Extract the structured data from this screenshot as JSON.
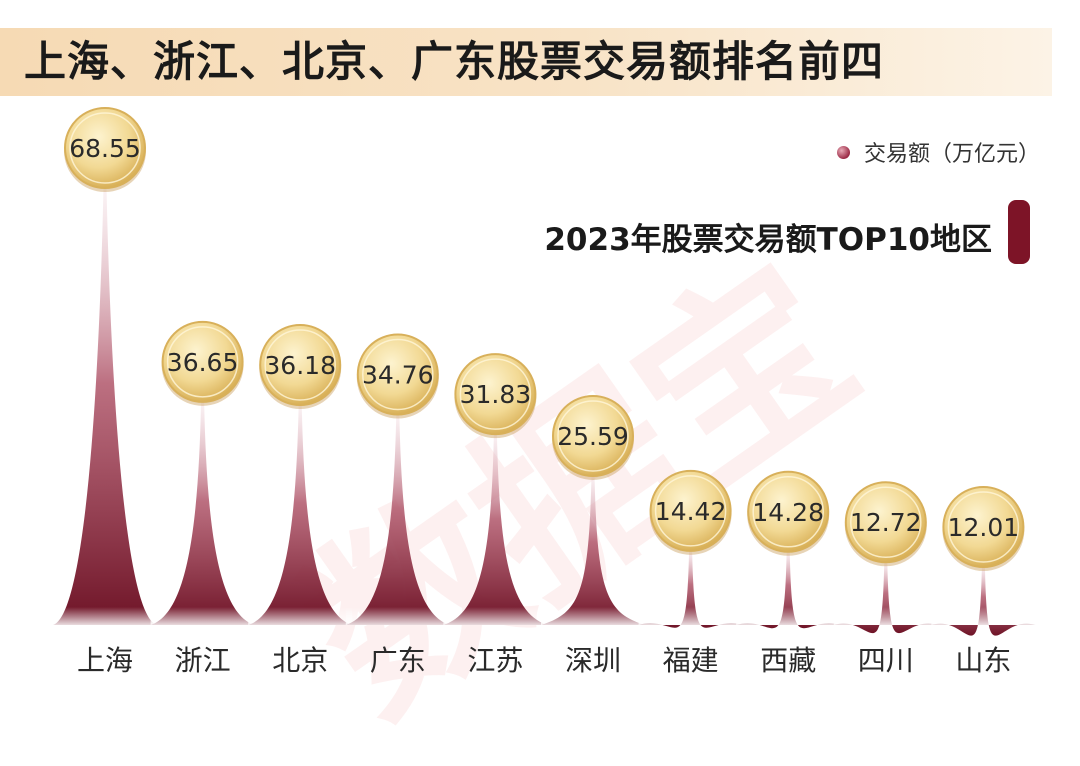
{
  "title": "上海、浙江、北京、广东股票交易额排名前四",
  "legend_label": "交易额（万亿元）",
  "subtitle": "2023年股票交易额TOP10地区",
  "watermark": "数据宝",
  "colors": {
    "spike_dark": "#6e1326",
    "spike_mid": "#b0566a",
    "spike_light": "#f3dde2",
    "medal_gold": "#e7c46d",
    "medal_light": "#fdf3cf",
    "title_band": "#f6dab4",
    "accent_bar": "#7d1427"
  },
  "chart_data": {
    "type": "bar",
    "title": "2023年股票交易额TOP10地区",
    "categories": [
      "上海",
      "浙江",
      "北京",
      "广东",
      "江苏",
      "深圳",
      "福建",
      "西藏",
      "四川",
      "山东"
    ],
    "series": [
      {
        "name": "交易额（万亿元）",
        "values": [
          68.55,
          36.65,
          36.18,
          34.76,
          31.83,
          25.59,
          14.42,
          14.28,
          12.72,
          12.01
        ]
      }
    ],
    "value_labels": [
      "68.55",
      "36.65",
      "36.18",
      "34.76",
      "31.83",
      "25.59",
      "14.42",
      "14.28",
      "12.72",
      "12.01"
    ],
    "legend_position": "top-right",
    "grid": false
  }
}
